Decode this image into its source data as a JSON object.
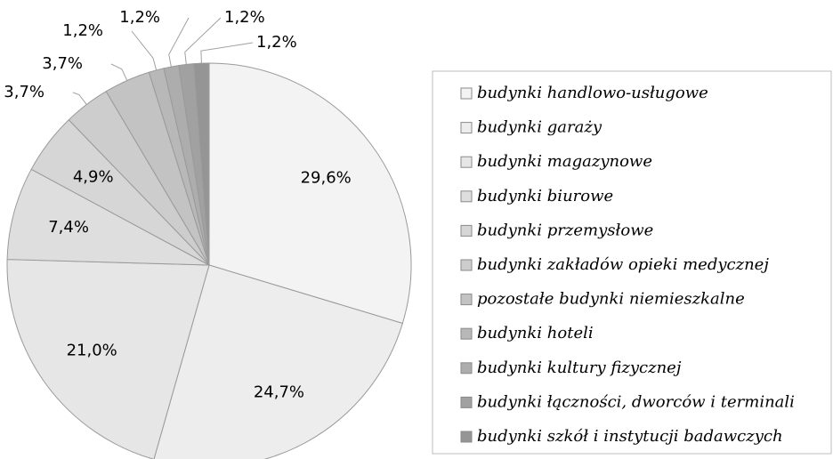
{
  "chart_data": {
    "type": "pie",
    "categories": [
      "budynki handlowo-usługowe",
      "budynki garaży",
      "budynki magazynowe",
      "budynki biurowe",
      "budynki przemysłowe",
      "budynki zakładów opieki medycznej",
      "pozostałe budynki niemieszkalne",
      "budynki hoteli",
      "budynki kultury fizycznej",
      "budynki łączności, dworców i terminali",
      "budynki szkół i instytucji badawczych"
    ],
    "values": [
      29.6,
      24.7,
      21.0,
      7.4,
      4.9,
      3.7,
      3.7,
      1.2,
      1.2,
      1.2,
      1.2
    ],
    "value_labels": [
      "29,6%",
      "24,7%",
      "21,0%",
      "7,4%",
      "4,9%",
      "3,7%",
      "3,7%",
      "1,2%",
      "1,2%",
      "1,2%",
      "1,2%"
    ],
    "colors": [
      "#f3f3f3",
      "#ededed",
      "#e6e6e6",
      "#dedede",
      "#d6d6d6",
      "#cdcdcd",
      "#c3c3c3",
      "#b8b8b8",
      "#adadad",
      "#a1a1a1",
      "#959595"
    ],
    "legend": "right"
  }
}
